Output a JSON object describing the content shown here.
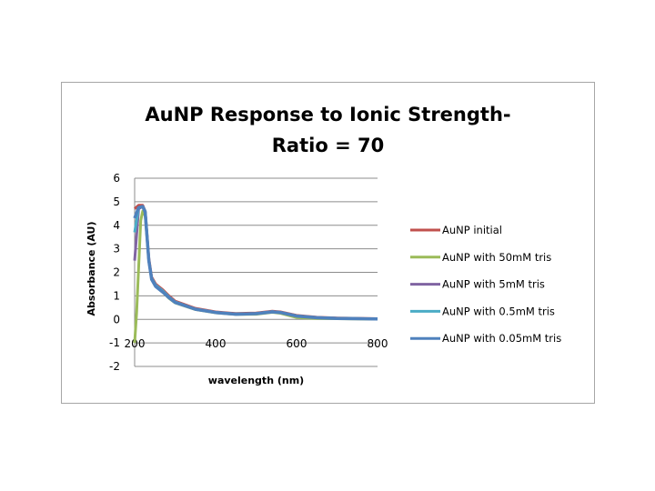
{
  "chart_data": {
    "type": "line",
    "title_lines": [
      "AuNP Response to Ionic Strength-",
      "Ratio = 70"
    ],
    "xlabel": "wavelength (nm)",
    "ylabel": "Absorbance (AU)",
    "xlim": [
      200,
      800
    ],
    "ylim": [
      -2,
      6
    ],
    "xticks": [
      "200",
      "400",
      "600",
      "800"
    ],
    "yticks": [
      "-2",
      "-1",
      "0",
      "1",
      "2",
      "3",
      "4",
      "5",
      "6"
    ],
    "grid": "horizontal",
    "legend_position": "right",
    "series": [
      {
        "name": "AuNP initial",
        "color": "#C0504D",
        "x": [
          200,
          210,
          220,
          226,
          235,
          242,
          252,
          270,
          285,
          300,
          350,
          400,
          450,
          500,
          540,
          560,
          600,
          650,
          700,
          800
        ],
        "y": [
          4.7,
          4.85,
          4.85,
          4.6,
          2.6,
          1.8,
          1.5,
          1.25,
          1.0,
          0.78,
          0.47,
          0.32,
          0.25,
          0.27,
          0.35,
          0.32,
          0.17,
          0.09,
          0.06,
          0.03
        ]
      },
      {
        "name": "AuNP with 50mM tris",
        "color": "#9BBB59",
        "x": [
          200,
          205,
          215,
          220,
          226,
          235,
          242,
          252,
          270,
          285,
          300,
          350,
          400,
          450,
          500,
          540,
          560,
          600,
          650,
          700,
          800
        ],
        "y": [
          -1.0,
          0.3,
          4.2,
          4.6,
          4.4,
          2.5,
          1.7,
          1.4,
          1.15,
          0.9,
          0.7,
          0.42,
          0.28,
          0.21,
          0.22,
          0.3,
          0.26,
          0.08,
          0.04,
          0.03,
          0.01
        ]
      },
      {
        "name": "AuNP with 5mM tris",
        "color": "#8064A2",
        "x": [
          200,
          210,
          220,
          226,
          235,
          242,
          252,
          270,
          285,
          300,
          350,
          400,
          450,
          500,
          540,
          560,
          600,
          650,
          700,
          800
        ],
        "y": [
          2.5,
          4.7,
          4.8,
          4.6,
          2.5,
          1.75,
          1.45,
          1.2,
          0.95,
          0.74,
          0.44,
          0.3,
          0.23,
          0.25,
          0.33,
          0.3,
          0.15,
          0.08,
          0.05,
          0.02
        ]
      },
      {
        "name": "AuNP with 0.5mM tris",
        "color": "#4BACC6",
        "x": [
          200,
          210,
          220,
          226,
          235,
          242,
          252,
          270,
          285,
          300,
          350,
          400,
          450,
          500,
          540,
          560,
          600,
          650,
          700,
          800
        ],
        "y": [
          3.7,
          4.75,
          4.8,
          4.6,
          2.5,
          1.75,
          1.45,
          1.2,
          0.95,
          0.74,
          0.44,
          0.3,
          0.23,
          0.25,
          0.33,
          0.3,
          0.15,
          0.08,
          0.05,
          0.02
        ]
      },
      {
        "name": "AuNP with 0.05mM tris",
        "color": "#4F81BD",
        "x": [
          200,
          210,
          220,
          226,
          235,
          242,
          252,
          270,
          285,
          300,
          350,
          400,
          450,
          500,
          540,
          560,
          600,
          650,
          700,
          800
        ],
        "y": [
          4.3,
          4.75,
          4.8,
          4.55,
          2.5,
          1.7,
          1.4,
          1.15,
          0.92,
          0.72,
          0.43,
          0.29,
          0.22,
          0.24,
          0.32,
          0.29,
          0.14,
          0.07,
          0.04,
          0.02
        ]
      }
    ]
  }
}
